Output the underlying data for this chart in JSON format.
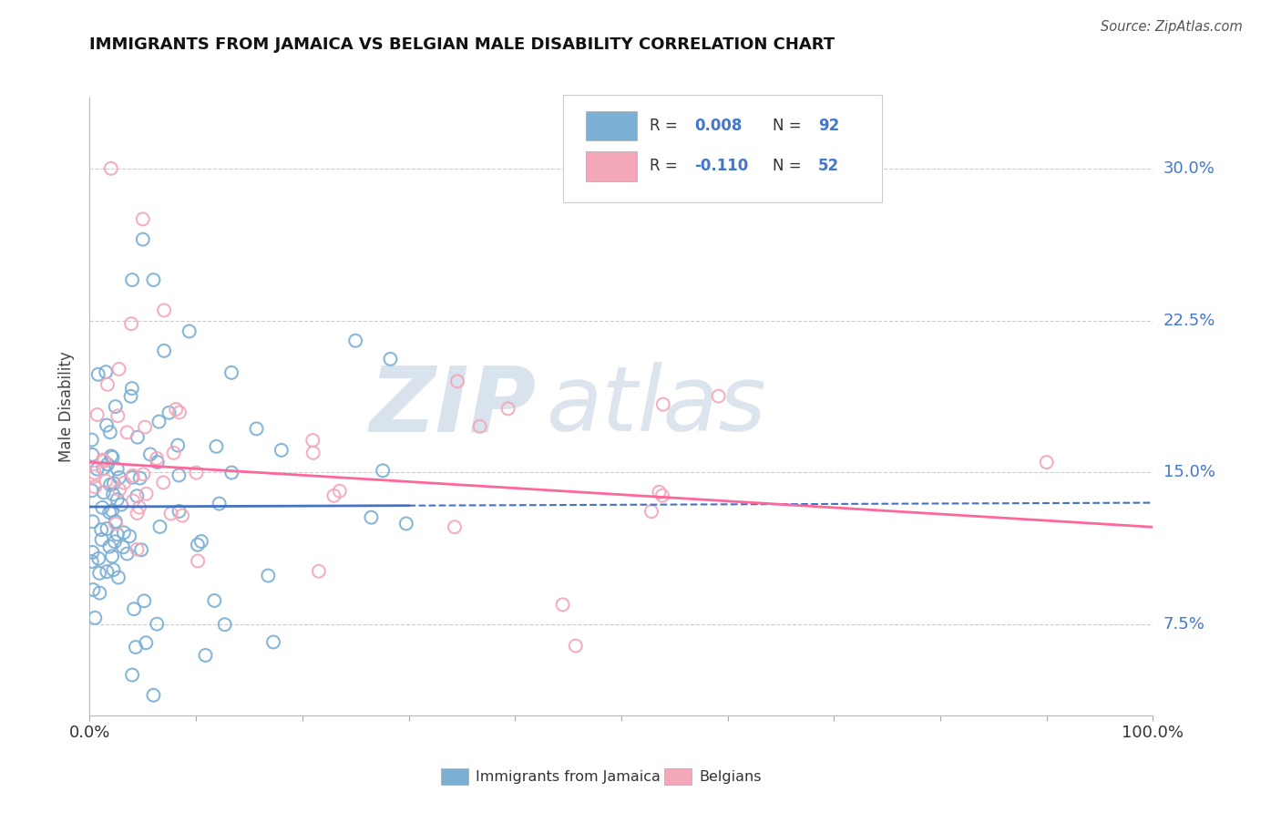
{
  "title": "IMMIGRANTS FROM JAMAICA VS BELGIAN MALE DISABILITY CORRELATION CHART",
  "source": "Source: ZipAtlas.com",
  "ylabel": "Male Disability",
  "ytick_vals": [
    0.075,
    0.15,
    0.225,
    0.3
  ],
  "ytick_labels": [
    "7.5%",
    "15.0%",
    "22.5%",
    "30.0%"
  ],
  "xlim": [
    0.0,
    1.0
  ],
  "ylim": [
    0.03,
    0.335
  ],
  "color_blue": "#7BAFD4",
  "color_pink": "#F4A7B9",
  "color_blue_line": "#4472C4",
  "color_pink_line": "#FF6699",
  "color_grid": "#CCCCCC",
  "background": "#FFFFFF",
  "blue_line_start_y": 0.133,
  "blue_line_end_y": 0.135,
  "pink_line_start_y": 0.155,
  "pink_line_end_y": 0.123,
  "watermark_zip_color": "#C8D8E8",
  "watermark_atlas_color": "#C0D0E0",
  "legend_text_color": "#333333",
  "legend_value_color": "#4477CC",
  "tick_label_color": "#4477CC",
  "xtick_label_color": "#333333"
}
